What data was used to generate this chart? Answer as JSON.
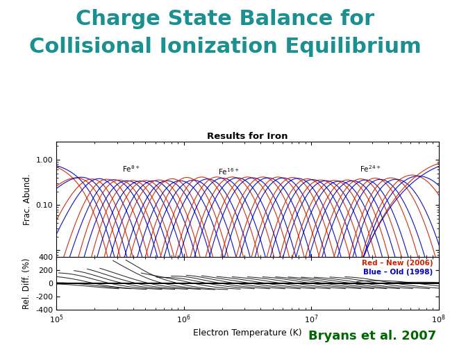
{
  "title_line1": "Charge State Balance for",
  "title_line2": "Collisional Ionization Equilibrium",
  "title_color": "#1a9090",
  "subtitle": "Results for Iron",
  "xlabel": "Electron Temperature (K)",
  "ylabel_top": "Frac. Abund.",
  "ylabel_bottom": "Rel. Diff. (%)",
  "xmin": 100000.0,
  "xmax": 100000000.0,
  "ybot_min": -400,
  "ybot_max": 400,
  "legend_red": "Red – New (2006)",
  "legend_blue": "Blue – Old (1998)",
  "footer": "Bryans et al. 2007",
  "background_color": "#ffffff",
  "red_color": "#cc2200",
  "blue_color": "#0000bb",
  "black_color": "#000000",
  "footer_color": "#006600",
  "peak_logT_red": [
    5.08,
    5.18,
    5.28,
    5.4,
    5.5,
    5.6,
    5.7,
    5.8,
    5.9,
    6.02,
    6.14,
    6.26,
    6.38,
    6.5,
    6.62,
    6.74,
    6.86,
    6.98,
    7.08,
    7.18,
    7.28,
    7.38,
    7.5,
    7.62,
    7.76,
    7.92
  ],
  "peak_logT_blue": [
    5.12,
    5.22,
    5.34,
    5.46,
    5.56,
    5.66,
    5.76,
    5.87,
    5.97,
    6.07,
    6.18,
    6.3,
    6.42,
    6.54,
    6.66,
    6.78,
    6.9,
    7.02,
    7.12,
    7.22,
    7.32,
    7.42,
    7.54,
    7.66,
    7.8,
    7.94
  ],
  "sigma_logT": [
    0.115,
    0.115,
    0.115,
    0.115,
    0.115,
    0.115,
    0.115,
    0.115,
    0.115,
    0.115,
    0.115,
    0.115,
    0.115,
    0.115,
    0.115,
    0.115,
    0.115,
    0.115,
    0.115,
    0.115,
    0.115,
    0.115,
    0.115,
    0.115,
    0.13,
    0.18
  ],
  "sigma_logT_blue": [
    0.12,
    0.12,
    0.12,
    0.12,
    0.12,
    0.12,
    0.12,
    0.12,
    0.12,
    0.12,
    0.12,
    0.12,
    0.12,
    0.12,
    0.12,
    0.12,
    0.12,
    0.12,
    0.12,
    0.12,
    0.12,
    0.12,
    0.12,
    0.12,
    0.14,
    0.19
  ],
  "ann1_text": "Fe$^{8+}$",
  "ann1_logx": 5.52,
  "ann1_y": 0.62,
  "ann2_text": "Fe$^{16+}$",
  "ann2_logx": 6.27,
  "ann2_y": 0.55,
  "ann3_text": "Fe$^{24+}$",
  "ann3_logx": 7.38,
  "ann3_y": 0.62
}
